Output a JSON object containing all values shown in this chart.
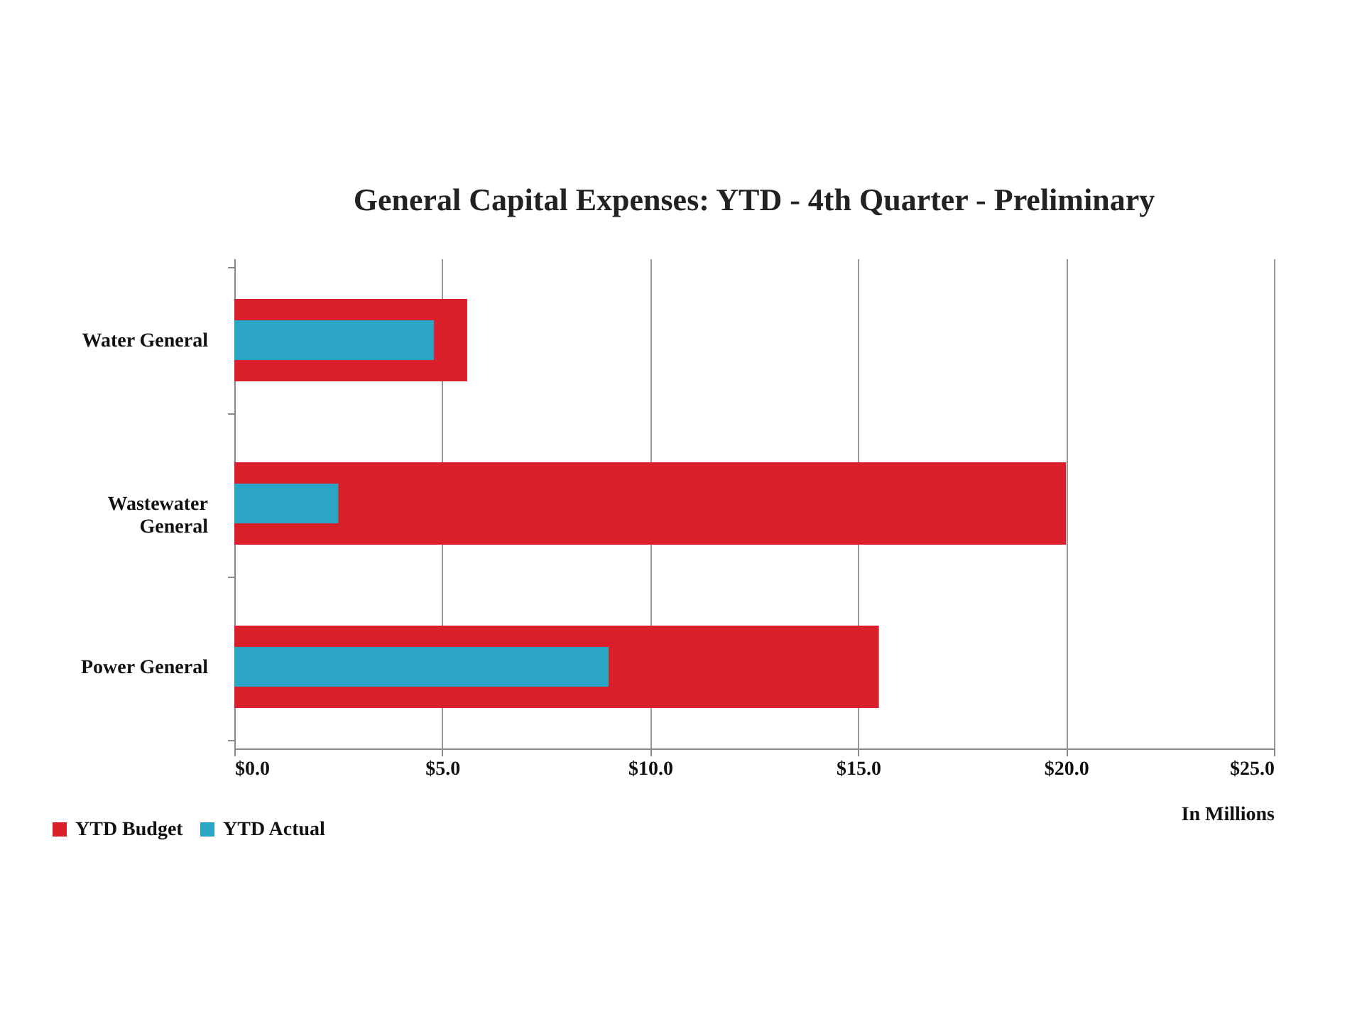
{
  "chart_data": {
    "type": "bar",
    "orientation": "horizontal",
    "title": "General Capital Expenses:  YTD - 4th Quarter - Preliminary",
    "xlabel": "In Millions",
    "categories": [
      "Water General",
      "Wastewater General",
      "Power General"
    ],
    "series": [
      {
        "name": "YTD Budget",
        "color": "#d9202a",
        "values": [
          5.6,
          20.0,
          15.5
        ]
      },
      {
        "name": "YTD Actual",
        "color": "#2aa5c4",
        "values": [
          4.8,
          2.5,
          9.0
        ]
      }
    ],
    "xlim": [
      0,
      25
    ],
    "xticks": [
      {
        "value": 0,
        "label": "$0.0"
      },
      {
        "value": 5,
        "label": "$5.0"
      },
      {
        "value": 10,
        "label": "$10.0"
      },
      {
        "value": 15,
        "label": "$15.0"
      },
      {
        "value": 20,
        "label": "$20.0"
      },
      {
        "value": 25,
        "label": "$25.0"
      }
    ],
    "grid": "x",
    "legend": "bottom left"
  }
}
